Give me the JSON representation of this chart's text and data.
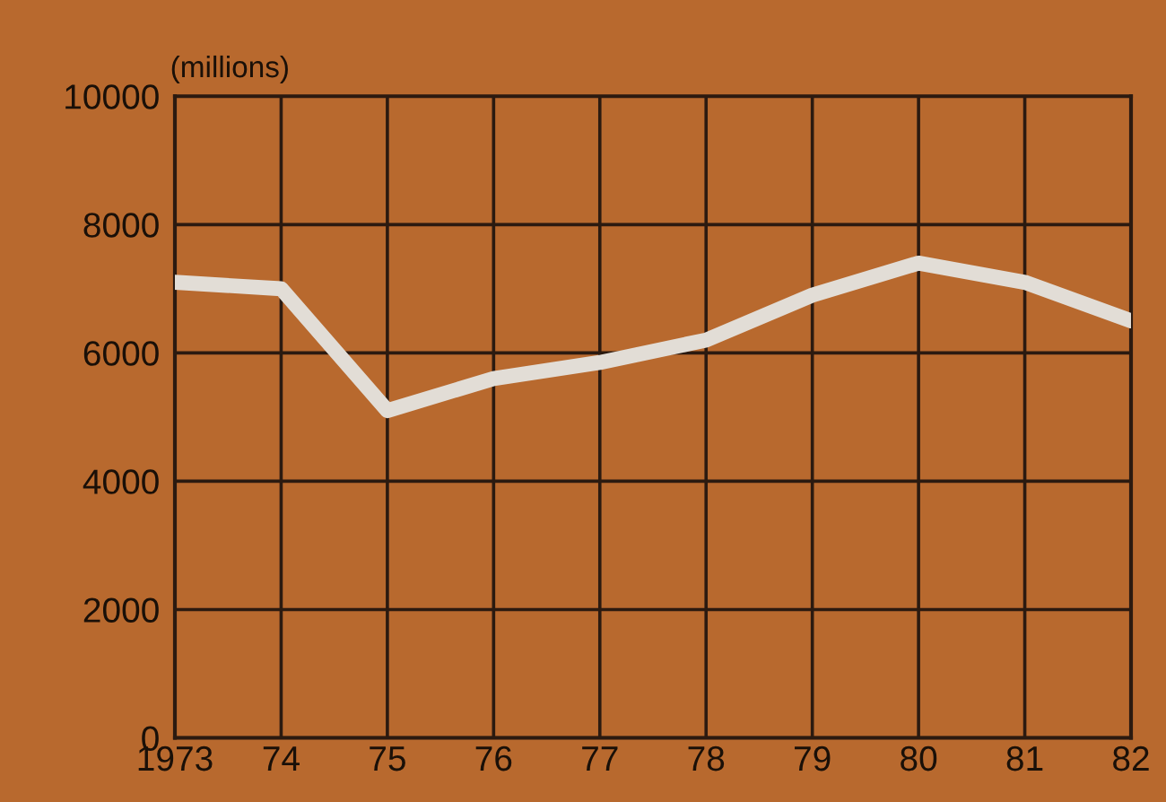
{
  "chart_data": {
    "type": "line",
    "ylabel": "(millions)",
    "x": [
      1973,
      1974,
      1975,
      1976,
      1977,
      1978,
      1979,
      1980,
      1981,
      1982
    ],
    "series": [
      {
        "color": "#e2ddd6",
        "values": [
          7100,
          7000,
          5100,
          5600,
          5850,
          6200,
          6900,
          7400,
          7100,
          6500
        ]
      }
    ],
    "xlim": [
      1973,
      1982
    ],
    "xticks": [
      {
        "value": 1973,
        "label": "1973"
      },
      {
        "value": 1974,
        "label": "74"
      },
      {
        "value": 1975,
        "label": "75"
      },
      {
        "value": 1976,
        "label": "76"
      },
      {
        "value": 1977,
        "label": "77"
      },
      {
        "value": 1978,
        "label": "78"
      },
      {
        "value": 1979,
        "label": "79"
      },
      {
        "value": 1980,
        "label": "80"
      },
      {
        "value": 1981,
        "label": "81"
      },
      {
        "value": 1982,
        "label": "82"
      }
    ],
    "ylim": [
      0,
      10000
    ],
    "yticks": [
      0,
      2000,
      4000,
      6000,
      8000,
      10000
    ],
    "grid": true,
    "marker": "none",
    "line_style": "solid"
  }
}
